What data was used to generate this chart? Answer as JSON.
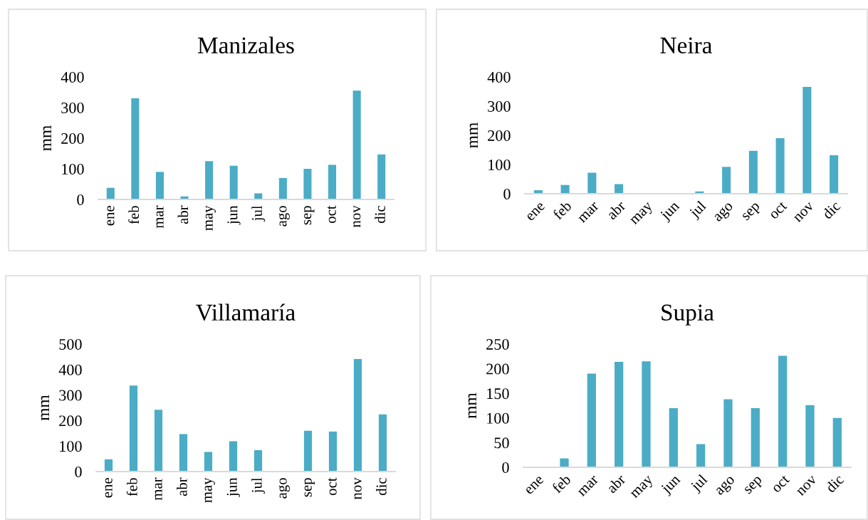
{
  "chart_data": [
    {
      "type": "bar",
      "title": "Manizales",
      "ylabel": "mm",
      "categories": [
        "ene",
        "feb",
        "mar",
        "abr",
        "may",
        "jun",
        "jul",
        "ago",
        "sep",
        "oct",
        "nov",
        "dic"
      ],
      "values": [
        38,
        330,
        90,
        10,
        125,
        110,
        20,
        70,
        100,
        113,
        355,
        147
      ],
      "color": "#4bacc6",
      "ylim": [
        0,
        400
      ],
      "yticks": [
        0,
        100,
        200,
        300,
        400
      ],
      "grid": false
    },
    {
      "type": "bar",
      "title": "Neira",
      "ylabel": "mm",
      "categories": [
        "ene",
        "feb",
        "mar",
        "abr",
        "may",
        "jun",
        "jul",
        "ago",
        "sep",
        "oct",
        "nov",
        "dic"
      ],
      "values": [
        12,
        30,
        72,
        33,
        0,
        0,
        8,
        92,
        147,
        190,
        366,
        132
      ],
      "color": "#4bacc6",
      "ylim": [
        0,
        400
      ],
      "yticks": [
        0,
        100,
        200,
        300,
        400
      ],
      "grid": false
    },
    {
      "type": "bar",
      "title": "Villamaría",
      "ylabel": "mm",
      "categories": [
        "ene",
        "feb",
        "mar",
        "abr",
        "may",
        "jun",
        "jul",
        "ago",
        "sep",
        "oct",
        "nov",
        "dic"
      ],
      "values": [
        48,
        337,
        242,
        147,
        77,
        119,
        84,
        0,
        160,
        157,
        441,
        224
      ],
      "color": "#4bacc6",
      "ylim": [
        0,
        500
      ],
      "yticks": [
        0,
        100,
        200,
        300,
        400,
        500
      ],
      "grid": false
    },
    {
      "type": "bar",
      "title": "Supia",
      "ylabel": "mm",
      "categories": [
        "ene",
        "feb",
        "mar",
        "abr",
        "may",
        "jun",
        "jul",
        "ago",
        "sep",
        "oct",
        "nov",
        "dic"
      ],
      "values": [
        0,
        18,
        190,
        214,
        215,
        120,
        47,
        138,
        120,
        226,
        126,
        100
      ],
      "color": "#4bacc6",
      "ylim": [
        0,
        250
      ],
      "yticks": [
        0,
        50,
        100,
        150,
        200,
        250
      ],
      "grid": false
    }
  ]
}
